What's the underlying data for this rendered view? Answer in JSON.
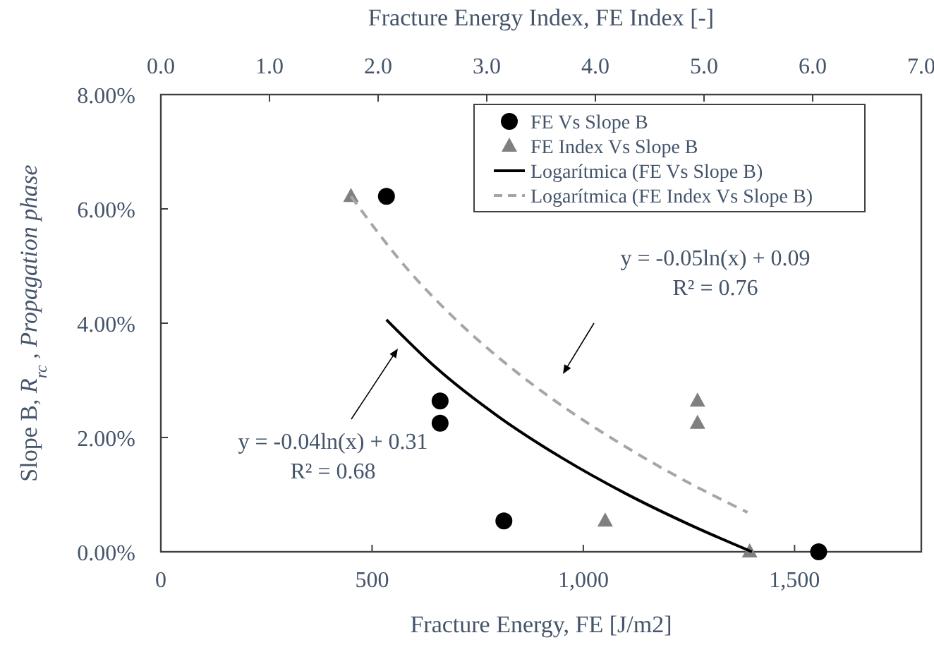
{
  "chart_data": {
    "type": "scatter",
    "xlabel": "Fracture Energy, FE [J/m2]",
    "x2label": "Fracture Energy Index, FE Index [-]",
    "ylabel": "Slope B, R$_{rc}$ , Propagation phase",
    "xlim": [
      0,
      1800
    ],
    "xticks": [
      0,
      500,
      {
        "value": 1000,
        "label": "1,000"
      },
      {
        "value": 1500,
        "label": "1,500"
      }
    ],
    "x2lim": [
      0,
      7
    ],
    "x2ticks": [
      {
        "value": 0,
        "label": "0.0"
      },
      {
        "value": 1,
        "label": "1.0"
      },
      {
        "value": 2,
        "label": "2.0"
      },
      {
        "value": 3,
        "label": "3.0"
      },
      {
        "value": 4,
        "label": "4.0"
      },
      {
        "value": 5,
        "label": "5.0"
      },
      {
        "value": 6,
        "label": "6.0"
      },
      {
        "value": 7,
        "label": "7.0"
      }
    ],
    "ylim": [
      0,
      8
    ],
    "yticks": [
      {
        "value": 0,
        "label": "0.00%"
      },
      {
        "value": 2,
        "label": "2.00%"
      },
      {
        "value": 4,
        "label": "4.00%"
      },
      {
        "value": 6,
        "label": "6.00%"
      },
      {
        "value": 8,
        "label": "8.00%"
      }
    ],
    "grid": false,
    "legend": "top right",
    "series": [
      {
        "name": "FE Vs Slope B",
        "marker": "circle",
        "color": "#000000",
        "x": [
          534,
          661,
          661,
          812,
          1557
        ],
        "values": [
          6.22,
          2.64,
          2.25,
          0.54,
          0
        ]
      },
      {
        "name": "FE Index Vs Slope B",
        "marker": "triangle",
        "axis": "x2",
        "color": "#808080",
        "x": [
          1.75,
          4.94,
          4.94,
          4.09,
          5.42
        ],
        "values": [
          6.22,
          2.64,
          2.25,
          0.54,
          0
        ]
      },
      {
        "name": "Logarítmica (FE Vs Slope B)",
        "type": "line",
        "line_style": "solid",
        "color": "#000000",
        "x": [
          534,
          650,
          800,
          950,
          1100,
          1250,
          1399
        ],
        "values": [
          4.06,
          3.23,
          2.36,
          1.64,
          1.02,
          0.48,
          0
        ]
      },
      {
        "name": "Logarítmica (FE Index Vs Slope B)",
        "type": "line",
        "line_style": "dashed",
        "axis": "x2",
        "color": "#a6a6a6",
        "x": [
          1.75,
          2.25,
          2.75,
          3.25,
          3.75,
          4.25,
          4.75,
          5.4
        ],
        "values": [
          6.22,
          4.99,
          4.0,
          3.18,
          2.48,
          1.87,
          1.32,
          0.69
        ]
      }
    ],
    "annotations": [
      "y = -0.04ln(x) + 0.31\nR² = 0.68",
      "y = -0.05ln(x) + 0.09\nR² = 0.76"
    ]
  }
}
